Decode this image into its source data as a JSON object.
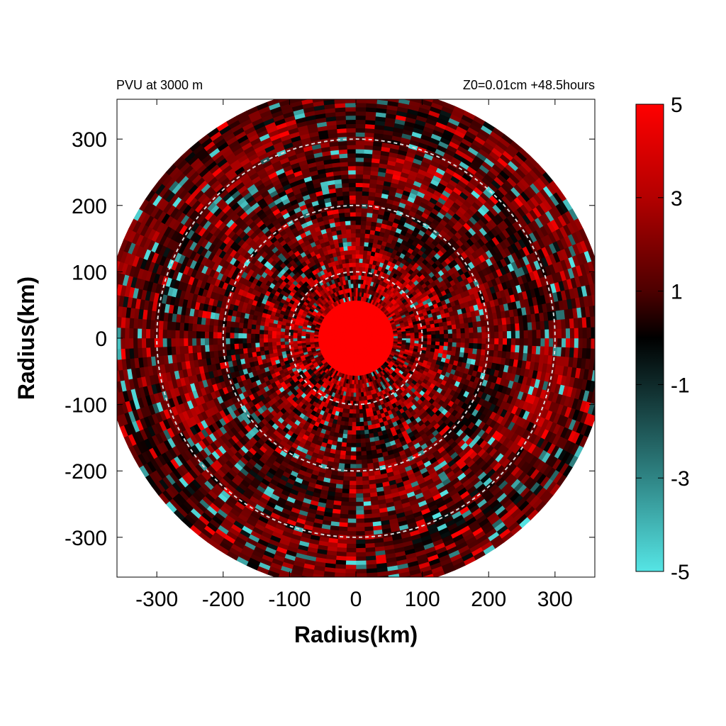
{
  "chart_data": {
    "type": "heatmap",
    "title_left": "PVU at  3000 m",
    "title_right": "Z0=0.01cm  +48.5hours",
    "xlabel": "Radius(km)",
    "ylabel": "Radius(km)",
    "xlim": [
      -360,
      360
    ],
    "ylim": [
      -360,
      360
    ],
    "x_ticks": [
      -300,
      -200,
      -100,
      0,
      100,
      200,
      300
    ],
    "y_ticks": [
      300,
      200,
      100,
      0,
      -100,
      -200,
      -300
    ],
    "x_tick_labels": [
      "-300",
      "-200",
      "-100",
      "0",
      "100",
      "200",
      "300"
    ],
    "y_tick_labels": [
      "300",
      "200",
      "100",
      "0",
      "-100",
      "-200",
      "-300"
    ],
    "domain_radius_km": 380,
    "reference_circle_radii_km": [
      100,
      200,
      300
    ],
    "colorbar": {
      "min": -5,
      "max": 5,
      "ticks": [
        5,
        3,
        1,
        -1,
        -3,
        -5
      ],
      "tick_labels": [
        "5",
        "3",
        "1",
        "-1",
        "-3",
        "-5"
      ],
      "colors": {
        "low": "#55e5e5",
        "mid": "#000000",
        "high": "#ff0000"
      }
    },
    "field_description": {
      "core": {
        "radius_km": 60,
        "value": 5
      },
      "background_range": [
        0,
        3
      ]
    }
  }
}
